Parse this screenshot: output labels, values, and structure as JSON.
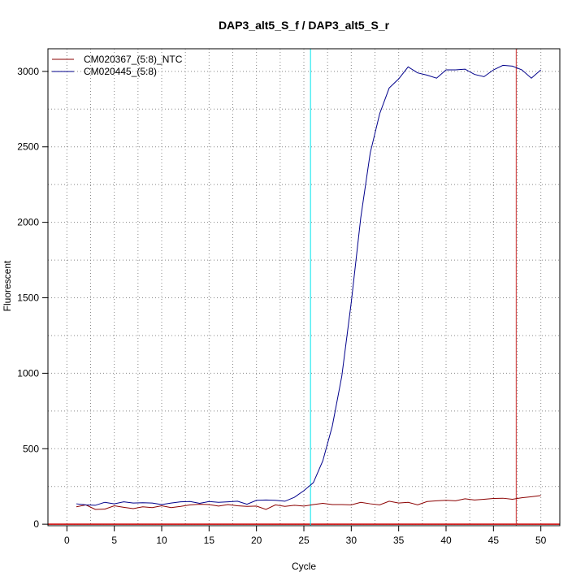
{
  "chart_data": {
    "type": "line",
    "title": "DAP3_alt5_S_f / DAP3_alt5_S_r",
    "xlabel": "Cycle",
    "ylabel": "Fluorescent",
    "xlim": [
      -2,
      52
    ],
    "ylim": [
      -10,
      3150
    ],
    "x_ticks": [
      0,
      5,
      10,
      15,
      20,
      25,
      30,
      35,
      40,
      45,
      50
    ],
    "y_ticks": [
      0,
      500,
      1000,
      1500,
      2000,
      2500,
      3000
    ],
    "grid": "dotted",
    "legend_position": "top-left",
    "x": [
      1,
      2,
      3,
      4,
      5,
      6,
      7,
      8,
      9,
      10,
      11,
      12,
      13,
      14,
      15,
      16,
      17,
      18,
      19,
      20,
      21,
      22,
      23,
      24,
      25,
      26,
      27,
      28,
      29,
      30,
      31,
      32,
      33,
      34,
      35,
      36,
      37,
      38,
      39,
      40,
      41,
      42,
      43,
      44,
      45,
      46,
      47,
      48,
      49,
      50
    ],
    "series": [
      {
        "name": "CM020367_(5:8)_NTC",
        "color": "#8b0000",
        "values": [
          115,
          128,
          98,
          100,
          122,
          112,
          103,
          115,
          110,
          122,
          110,
          118,
          128,
          132,
          130,
          120,
          130,
          122,
          118,
          120,
          98,
          128,
          118,
          125,
          120,
          130,
          138,
          130,
          130,
          128,
          145,
          135,
          128,
          152,
          140,
          145,
          128,
          150,
          155,
          158,
          155,
          168,
          160,
          165,
          170,
          172,
          165,
          175,
          182,
          190
        ]
      },
      {
        "name": "CM020445_(5:8)",
        "color": "#00008b",
        "values": [
          135,
          128,
          125,
          145,
          135,
          148,
          140,
          142,
          140,
          130,
          140,
          148,
          150,
          138,
          150,
          145,
          148,
          152,
          132,
          158,
          160,
          158,
          152,
          178,
          222,
          275,
          420,
          650,
          980,
          1470,
          2030,
          2460,
          2720,
          2890,
          2950,
          3030,
          2990,
          2975,
          2955,
          3010,
          3010,
          3015,
          2980,
          2965,
          3010,
          3040,
          3035,
          3010,
          2955,
          3010
        ]
      }
    ],
    "threshold_line": {
      "y": 0,
      "color": "#cc0000"
    },
    "vertical_markers": [
      {
        "x": 25.7,
        "color": "#00e5ee"
      },
      {
        "x": 47.4,
        "color": "#cd3333"
      }
    ]
  }
}
